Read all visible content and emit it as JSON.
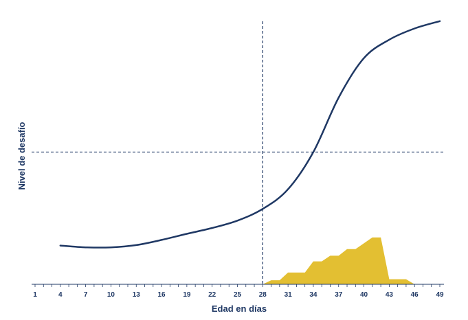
{
  "chart_data": {
    "type": "line",
    "title": "",
    "xlabel": "Edad en días",
    "ylabel": "Nivel de desafío",
    "xlim": [
      1,
      49
    ],
    "ylim": [
      0,
      100
    ],
    "x_ticks": [
      1,
      4,
      7,
      10,
      13,
      16,
      19,
      22,
      25,
      28,
      31,
      34,
      37,
      40,
      43,
      46,
      49
    ],
    "grid": false,
    "colors": {
      "curve": "#1f3864",
      "area": "#e3bf32",
      "axis": "#1f3864",
      "reference": "#1f3864"
    },
    "series": [
      {
        "type": "line",
        "x": [
          4,
          7,
          10,
          13,
          16,
          19,
          22,
          25,
          28,
          31,
          34,
          37,
          40,
          43,
          46,
          49
        ],
        "values": [
          15.2,
          14.5,
          14.5,
          15.4,
          17.4,
          19.8,
          22.1,
          25.0,
          29.6,
          37.3,
          51.9,
          73.3,
          88.8,
          96.0,
          100.4,
          103.3
        ]
      },
      {
        "type": "area",
        "x": [
          28,
          29,
          30,
          31,
          32,
          33,
          34,
          35,
          36,
          37,
          38,
          39,
          40,
          41,
          42,
          43,
          44,
          45,
          46
        ],
        "values": [
          0,
          1.6,
          1.6,
          4.6,
          4.6,
          4.6,
          9.0,
          9.0,
          11.2,
          11.2,
          13.8,
          13.8,
          16.1,
          18.4,
          18.4,
          2.0,
          2.0,
          2.0,
          0
        ]
      }
    ],
    "reference_lines": {
      "x": 28,
      "y": 51.9
    }
  }
}
